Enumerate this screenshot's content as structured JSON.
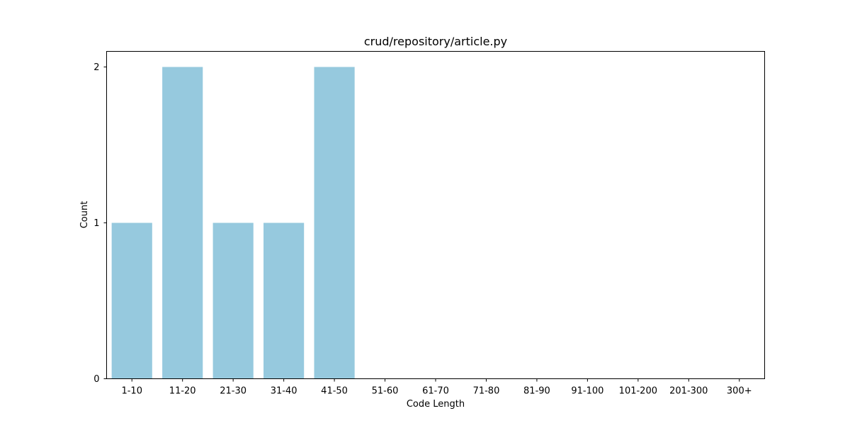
{
  "chart_data": {
    "type": "bar",
    "title": "crud/repository/article.py",
    "xlabel": "Code Length",
    "ylabel": "Count",
    "categories": [
      "1-10",
      "11-20",
      "21-30",
      "31-40",
      "41-50",
      "51-60",
      "61-70",
      "71-80",
      "81-90",
      "91-100",
      "101-200",
      "201-300",
      "300+"
    ],
    "values": [
      1,
      2,
      1,
      1,
      2,
      0,
      0,
      0,
      0,
      0,
      0,
      0,
      0
    ],
    "ylim": [
      0,
      2.1
    ],
    "yticks": [
      0,
      1,
      2
    ],
    "bar_color": "#96c9de",
    "grid": false,
    "legend": "none"
  }
}
